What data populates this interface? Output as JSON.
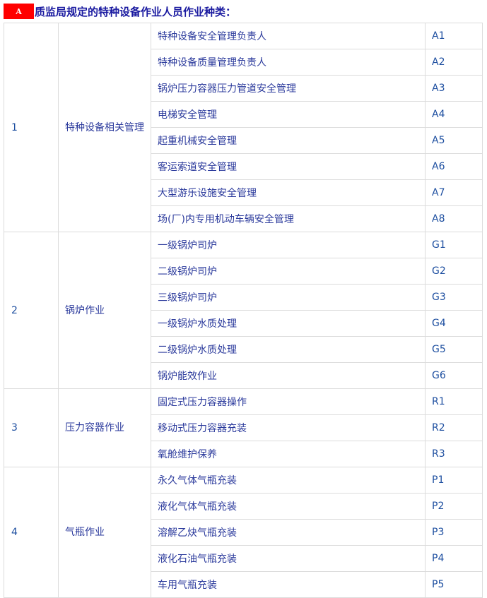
{
  "title": {
    "badge": "A",
    "text": "质监局规定的特种设备作业人员作业种类："
  },
  "groups": [
    {
      "num": "1",
      "name": "特种设备相关管理",
      "items": [
        {
          "name": "特种设备安全管理负责人",
          "code": "A1"
        },
        {
          "name": "特种设备质量管理负责人",
          "code": "A2"
        },
        {
          "name": "锅炉压力容器压力管道安全管理",
          "code": "A3"
        },
        {
          "name": "电梯安全管理",
          "code": "A4"
        },
        {
          "name": "起重机械安全管理",
          "code": "A5"
        },
        {
          "name": "客运索道安全管理",
          "code": "A6"
        },
        {
          "name": "大型游乐设施安全管理",
          "code": "A7"
        },
        {
          "name": "场(厂)内专用机动车辆安全管理",
          "code": "A8"
        }
      ]
    },
    {
      "num": "2",
      "name": "锅炉作业",
      "items": [
        {
          "name": "一级锅炉司炉",
          "code": "G1"
        },
        {
          "name": "二级锅炉司炉",
          "code": "G2"
        },
        {
          "name": "三级锅炉司炉",
          "code": "G3"
        },
        {
          "name": "一级锅炉水质处理",
          "code": "G4"
        },
        {
          "name": "二级锅炉水质处理",
          "code": "G5"
        },
        {
          "name": "锅炉能效作业",
          "code": "G6"
        }
      ]
    },
    {
      "num": "3",
      "name": "压力容器作业",
      "items": [
        {
          "name": "固定式压力容器操作",
          "code": "R1"
        },
        {
          "name": "移动式压力容器充装",
          "code": "R2"
        },
        {
          "name": "氧舱维护保养",
          "code": "R3"
        }
      ]
    },
    {
      "num": "4",
      "name": "气瓶作业",
      "items": [
        {
          "name": "永久气体气瓶充装",
          "code": "P1"
        },
        {
          "name": "液化气体气瓶充装",
          "code": "P2"
        },
        {
          "name": "溶解乙炔气瓶充装",
          "code": "P3"
        },
        {
          "name": "液化石油气瓶充装",
          "code": "P4"
        },
        {
          "name": "车用气瓶充装",
          "code": "P5"
        }
      ]
    }
  ]
}
